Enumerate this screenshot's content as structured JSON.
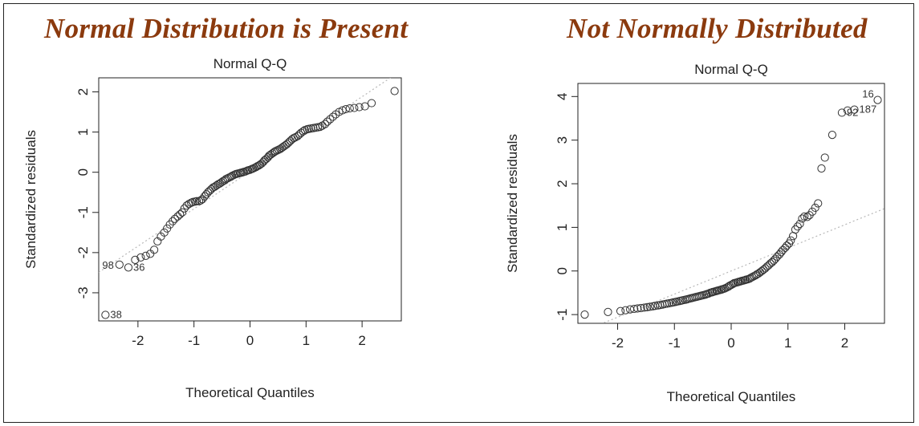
{
  "headlines": {
    "left": "Normal Distribution is Present",
    "right": "Not Normally Distributed"
  },
  "colors": {
    "headline": "#8b3a0e",
    "points": "#333333",
    "reference_line": "#b8b8b8",
    "axes": "#222222"
  },
  "chart_data": [
    {
      "type": "scatter",
      "title": "Normal Q-Q",
      "xlabel": "Theoretical Quantiles",
      "ylabel": "Standardized residuals",
      "xlim": [
        -2.7,
        2.7
      ],
      "ylim": [
        -3.7,
        2.35
      ],
      "xticks": [
        -2,
        -1,
        0,
        1,
        2
      ],
      "yticks": [
        -3,
        -2,
        -1,
        0,
        1,
        2
      ],
      "grid": false,
      "reference_line": {
        "intercept": 0.02,
        "slope": 0.93,
        "style": "dotted"
      },
      "labeled_points": [
        {
          "label": "38",
          "x": -2.58,
          "y": -3.55
        },
        {
          "label": "98",
          "x": -2.33,
          "y": -2.3
        },
        {
          "label": "36",
          "x": -2.17,
          "y": -2.37
        }
      ],
      "points": [
        [
          -2.58,
          -3.55
        ],
        [
          -2.33,
          -2.3
        ],
        [
          -2.17,
          -2.37
        ],
        [
          -2.05,
          -2.18
        ],
        [
          -1.95,
          -2.12
        ],
        [
          -1.86,
          -2.08
        ],
        [
          -1.78,
          -2.03
        ],
        [
          -1.71,
          -1.93
        ],
        [
          -1.65,
          -1.72
        ],
        [
          -1.59,
          -1.6
        ],
        [
          -1.53,
          -1.5
        ],
        [
          -1.48,
          -1.4
        ],
        [
          -1.43,
          -1.3
        ],
        [
          -1.38,
          -1.22
        ],
        [
          -1.34,
          -1.16
        ],
        [
          -1.29,
          -1.1
        ],
        [
          -1.25,
          -1.05
        ],
        [
          -1.21,
          -1.0
        ],
        [
          -1.17,
          -0.9
        ],
        [
          -1.13,
          -0.83
        ],
        [
          -1.09,
          -0.79
        ],
        [
          -1.05,
          -0.76
        ],
        [
          -1.02,
          -0.74
        ],
        [
          -0.98,
          -0.73
        ],
        [
          -0.95,
          -0.72
        ],
        [
          -0.91,
          -0.72
        ],
        [
          -0.88,
          -0.7
        ],
        [
          -0.85,
          -0.67
        ],
        [
          -0.81,
          -0.6
        ],
        [
          -0.78,
          -0.55
        ],
        [
          -0.75,
          -0.5
        ],
        [
          -0.72,
          -0.46
        ],
        [
          -0.69,
          -0.42
        ],
        [
          -0.66,
          -0.38
        ],
        [
          -0.63,
          -0.36
        ],
        [
          -0.6,
          -0.33
        ],
        [
          -0.57,
          -0.3
        ],
        [
          -0.54,
          -0.28
        ],
        [
          -0.51,
          -0.25
        ],
        [
          -0.48,
          -0.22
        ],
        [
          -0.45,
          -0.2
        ],
        [
          -0.43,
          -0.17
        ],
        [
          -0.4,
          -0.15
        ],
        [
          -0.37,
          -0.13
        ],
        [
          -0.34,
          -0.11
        ],
        [
          -0.32,
          -0.09
        ],
        [
          -0.29,
          -0.07
        ],
        [
          -0.26,
          -0.05
        ],
        [
          -0.24,
          -0.04
        ],
        [
          -0.21,
          -0.03
        ],
        [
          -0.18,
          -0.02
        ],
        [
          -0.16,
          -0.01
        ],
        [
          -0.13,
          0.0
        ],
        [
          -0.11,
          0.01
        ],
        [
          -0.08,
          0.02
        ],
        [
          -0.05,
          0.04
        ],
        [
          -0.03,
          0.05
        ],
        [
          0.0,
          0.06
        ],
        [
          0.03,
          0.08
        ],
        [
          0.05,
          0.09
        ],
        [
          0.08,
          0.11
        ],
        [
          0.11,
          0.13
        ],
        [
          0.13,
          0.15
        ],
        [
          0.16,
          0.17
        ],
        [
          0.18,
          0.19
        ],
        [
          0.21,
          0.22
        ],
        [
          0.24,
          0.26
        ],
        [
          0.26,
          0.3
        ],
        [
          0.29,
          0.33
        ],
        [
          0.32,
          0.37
        ],
        [
          0.34,
          0.41
        ],
        [
          0.37,
          0.44
        ],
        [
          0.4,
          0.47
        ],
        [
          0.43,
          0.5
        ],
        [
          0.45,
          0.52
        ],
        [
          0.48,
          0.54
        ],
        [
          0.51,
          0.56
        ],
        [
          0.54,
          0.58
        ],
        [
          0.57,
          0.61
        ],
        [
          0.6,
          0.64
        ],
        [
          0.63,
          0.67
        ],
        [
          0.66,
          0.7
        ],
        [
          0.69,
          0.74
        ],
        [
          0.72,
          0.78
        ],
        [
          0.75,
          0.82
        ],
        [
          0.78,
          0.85
        ],
        [
          0.81,
          0.87
        ],
        [
          0.85,
          0.9
        ],
        [
          0.88,
          0.94
        ],
        [
          0.91,
          0.98
        ],
        [
          0.95,
          1.02
        ],
        [
          0.98,
          1.05
        ],
        [
          1.02,
          1.07
        ],
        [
          1.05,
          1.08
        ],
        [
          1.09,
          1.09
        ],
        [
          1.13,
          1.1
        ],
        [
          1.17,
          1.11
        ],
        [
          1.21,
          1.12
        ],
        [
          1.25,
          1.13
        ],
        [
          1.29,
          1.16
        ],
        [
          1.34,
          1.2
        ],
        [
          1.38,
          1.26
        ],
        [
          1.43,
          1.32
        ],
        [
          1.48,
          1.38
        ],
        [
          1.53,
          1.44
        ],
        [
          1.59,
          1.5
        ],
        [
          1.65,
          1.54
        ],
        [
          1.71,
          1.57
        ],
        [
          1.78,
          1.59
        ],
        [
          1.86,
          1.6
        ],
        [
          1.95,
          1.62
        ],
        [
          2.05,
          1.64
        ],
        [
          2.17,
          1.72
        ],
        [
          2.58,
          2.02
        ]
      ]
    },
    {
      "type": "scatter",
      "title": "Normal Q-Q",
      "xlabel": "Theoretical Quantiles",
      "ylabel": "Standardized residuals",
      "xlim": [
        -2.7,
        2.7
      ],
      "ylim": [
        -1.2,
        4.3
      ],
      "xticks": [
        -2,
        -1,
        0,
        1,
        2
      ],
      "yticks": [
        -1,
        0,
        1,
        2,
        3,
        4
      ],
      "grid": false,
      "reference_line": {
        "intercept": 0.0,
        "slope": 0.53,
        "style": "dotted"
      },
      "labeled_points": [
        {
          "label": "16",
          "x": 2.58,
          "y": 3.92
        },
        {
          "label": "187",
          "x": 2.17,
          "y": 3.7
        },
        {
          "label": "92",
          "x": 1.95,
          "y": 3.63
        }
      ],
      "points": [
        [
          -2.58,
          -1.0
        ],
        [
          -2.17,
          -0.94
        ],
        [
          -1.95,
          -0.92
        ],
        [
          -1.86,
          -0.9
        ],
        [
          -1.78,
          -0.88
        ],
        [
          -1.71,
          -0.87
        ],
        [
          -1.65,
          -0.86
        ],
        [
          -1.59,
          -0.85
        ],
        [
          -1.53,
          -0.84
        ],
        [
          -1.48,
          -0.83
        ],
        [
          -1.43,
          -0.82
        ],
        [
          -1.38,
          -0.81
        ],
        [
          -1.34,
          -0.8
        ],
        [
          -1.29,
          -0.79
        ],
        [
          -1.25,
          -0.78
        ],
        [
          -1.21,
          -0.77
        ],
        [
          -1.17,
          -0.76
        ],
        [
          -1.13,
          -0.75
        ],
        [
          -1.09,
          -0.74
        ],
        [
          -1.05,
          -0.73
        ],
        [
          -1.02,
          -0.72
        ],
        [
          -0.98,
          -0.71
        ],
        [
          -0.95,
          -0.7
        ],
        [
          -0.91,
          -0.69
        ],
        [
          -0.88,
          -0.68
        ],
        [
          -0.85,
          -0.67
        ],
        [
          -0.81,
          -0.66
        ],
        [
          -0.78,
          -0.65
        ],
        [
          -0.75,
          -0.64
        ],
        [
          -0.72,
          -0.63
        ],
        [
          -0.69,
          -0.62
        ],
        [
          -0.66,
          -0.61
        ],
        [
          -0.63,
          -0.6
        ],
        [
          -0.6,
          -0.59
        ],
        [
          -0.57,
          -0.58
        ],
        [
          -0.54,
          -0.57
        ],
        [
          -0.51,
          -0.56
        ],
        [
          -0.48,
          -0.55
        ],
        [
          -0.45,
          -0.54
        ],
        [
          -0.43,
          -0.53
        ],
        [
          -0.4,
          -0.52
        ],
        [
          -0.37,
          -0.5
        ],
        [
          -0.34,
          -0.49
        ],
        [
          -0.32,
          -0.48
        ],
        [
          -0.29,
          -0.47
        ],
        [
          -0.26,
          -0.46
        ],
        [
          -0.24,
          -0.45
        ],
        [
          -0.21,
          -0.44
        ],
        [
          -0.18,
          -0.43
        ],
        [
          -0.16,
          -0.42
        ],
        [
          -0.13,
          -0.41
        ],
        [
          -0.11,
          -0.4
        ],
        [
          -0.08,
          -0.38
        ],
        [
          -0.05,
          -0.36
        ],
        [
          -0.03,
          -0.34
        ],
        [
          0.0,
          -0.32
        ],
        [
          0.03,
          -0.3
        ],
        [
          0.05,
          -0.28
        ],
        [
          0.08,
          -0.27
        ],
        [
          0.11,
          -0.26
        ],
        [
          0.13,
          -0.25
        ],
        [
          0.16,
          -0.24
        ],
        [
          0.18,
          -0.23
        ],
        [
          0.21,
          -0.22
        ],
        [
          0.24,
          -0.21
        ],
        [
          0.26,
          -0.2
        ],
        [
          0.29,
          -0.19
        ],
        [
          0.32,
          -0.18
        ],
        [
          0.34,
          -0.16
        ],
        [
          0.37,
          -0.14
        ],
        [
          0.4,
          -0.12
        ],
        [
          0.43,
          -0.1
        ],
        [
          0.45,
          -0.08
        ],
        [
          0.48,
          -0.06
        ],
        [
          0.51,
          -0.03
        ],
        [
          0.54,
          0.0
        ],
        [
          0.57,
          0.03
        ],
        [
          0.6,
          0.06
        ],
        [
          0.63,
          0.1
        ],
        [
          0.66,
          0.13
        ],
        [
          0.69,
          0.17
        ],
        [
          0.72,
          0.2
        ],
        [
          0.75,
          0.24
        ],
        [
          0.78,
          0.28
        ],
        [
          0.81,
          0.33
        ],
        [
          0.85,
          0.38
        ],
        [
          0.88,
          0.43
        ],
        [
          0.91,
          0.48
        ],
        [
          0.95,
          0.53
        ],
        [
          0.98,
          0.58
        ],
        [
          1.02,
          0.63
        ],
        [
          1.05,
          0.7
        ],
        [
          1.09,
          0.8
        ],
        [
          1.13,
          0.95
        ],
        [
          1.17,
          1.02
        ],
        [
          1.21,
          1.08
        ],
        [
          1.25,
          1.2
        ],
        [
          1.29,
          1.25
        ],
        [
          1.34,
          1.24
        ],
        [
          1.38,
          1.28
        ],
        [
          1.43,
          1.36
        ],
        [
          1.48,
          1.45
        ],
        [
          1.53,
          1.55
        ],
        [
          1.59,
          2.35
        ],
        [
          1.65,
          2.6
        ],
        [
          1.78,
          3.12
        ],
        [
          1.95,
          3.63
        ],
        [
          2.05,
          3.68
        ],
        [
          2.17,
          3.7
        ],
        [
          2.58,
          3.92
        ]
      ]
    }
  ]
}
